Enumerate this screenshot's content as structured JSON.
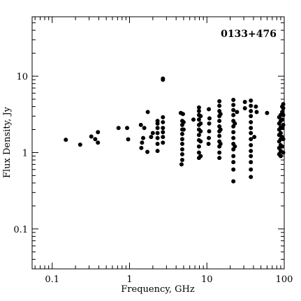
{
  "chart_data": {
    "type": "scatter",
    "title": "0133+476",
    "xlabel": "Frequency, GHz",
    "ylabel": "Flux Density, Jy",
    "xscale": "log",
    "yscale": "log",
    "xlim": [
      0.055,
      100
    ],
    "ylim": [
      0.03,
      60
    ],
    "x_ticks": [
      0.1,
      1,
      10,
      100
    ],
    "x_tick_labels": [
      "0.1",
      "1",
      "10",
      "100"
    ],
    "y_ticks": [
      0.1,
      1,
      10
    ],
    "y_tick_labels": [
      "0.1",
      "1",
      "10"
    ],
    "grid": false,
    "legend": "none",
    "marker_color": "#000000",
    "points": [
      [
        0.15,
        1.47
      ],
      [
        0.23,
        1.27
      ],
      [
        0.32,
        1.62
      ],
      [
        0.36,
        1.5
      ],
      [
        0.39,
        1.35
      ],
      [
        0.39,
        1.85
      ],
      [
        0.72,
        2.1
      ],
      [
        0.93,
        2.1
      ],
      [
        0.96,
        1.49
      ],
      [
        1.4,
        2.3
      ],
      [
        1.42,
        1.15
      ],
      [
        1.45,
        1.35
      ],
      [
        1.5,
        1.55
      ],
      [
        1.55,
        2.1
      ],
      [
        1.7,
        1.02
      ],
      [
        1.72,
        3.4
      ],
      [
        1.9,
        1.6
      ],
      [
        2.0,
        1.8
      ],
      [
        2.3,
        1.05
      ],
      [
        2.3,
        1.3
      ],
      [
        2.3,
        1.55
      ],
      [
        2.3,
        1.8
      ],
      [
        2.3,
        2.1
      ],
      [
        2.3,
        2.4
      ],
      [
        2.3,
        2.6
      ],
      [
        2.7,
        1.35
      ],
      [
        2.7,
        1.6
      ],
      [
        2.7,
        1.85
      ],
      [
        2.7,
        2.1
      ],
      [
        2.7,
        2.5
      ],
      [
        2.7,
        2.9
      ],
      [
        2.7,
        9.0
      ],
      [
        2.7,
        9.3
      ],
      [
        4.6,
        3.3
      ],
      [
        4.7,
        0.7
      ],
      [
        4.8,
        0.8
      ],
      [
        4.8,
        0.95
      ],
      [
        4.8,
        1.1
      ],
      [
        4.8,
        1.3
      ],
      [
        4.8,
        1.5
      ],
      [
        4.8,
        1.75
      ],
      [
        4.8,
        2.0
      ],
      [
        4.8,
        2.3
      ],
      [
        4.8,
        2.6
      ],
      [
        4.9,
        3.2
      ],
      [
        5.0,
        2.0
      ],
      [
        5.0,
        2.5
      ],
      [
        6.7,
        2.7
      ],
      [
        7.9,
        0.85
      ],
      [
        7.9,
        1.0
      ],
      [
        7.9,
        1.2
      ],
      [
        7.9,
        1.45
      ],
      [
        7.9,
        1.7
      ],
      [
        7.9,
        2.0
      ],
      [
        7.9,
        2.3
      ],
      [
        7.9,
        2.7
      ],
      [
        7.9,
        3.1
      ],
      [
        7.9,
        3.5
      ],
      [
        7.9,
        3.9
      ],
      [
        8.3,
        0.9
      ],
      [
        8.3,
        1.4
      ],
      [
        8.3,
        1.9
      ],
      [
        8.3,
        2.4
      ],
      [
        8.3,
        3.0
      ],
      [
        10.5,
        1.3
      ],
      [
        10.6,
        1.55
      ],
      [
        10.7,
        1.9
      ],
      [
        10.7,
        2.4
      ],
      [
        10.8,
        2.8
      ],
      [
        10.6,
        3.7
      ],
      [
        14.5,
        0.85
      ],
      [
        14.5,
        1.0
      ],
      [
        14.5,
        1.2
      ],
      [
        14.5,
        1.4
      ],
      [
        14.5,
        1.65
      ],
      [
        14.5,
        1.9
      ],
      [
        14.5,
        2.2
      ],
      [
        14.5,
        2.6
      ],
      [
        14.5,
        3.0
      ],
      [
        14.5,
        3.5
      ],
      [
        14.5,
        4.1
      ],
      [
        14.5,
        4.7
      ],
      [
        15.0,
        1.3
      ],
      [
        15.0,
        2.0
      ],
      [
        15.0,
        3.2
      ],
      [
        22.0,
        0.42
      ],
      [
        22.0,
        0.6
      ],
      [
        22.0,
        0.75
      ],
      [
        22.0,
        0.9
      ],
      [
        22.0,
        1.1
      ],
      [
        22.0,
        1.3
      ],
      [
        22.0,
        1.55
      ],
      [
        22.0,
        1.85
      ],
      [
        22.0,
        2.2
      ],
      [
        22.0,
        2.6
      ],
      [
        22.0,
        3.1
      ],
      [
        22.0,
        3.6
      ],
      [
        22.0,
        4.2
      ],
      [
        22.0,
        4.9
      ],
      [
        23.0,
        1.2
      ],
      [
        23.0,
        2.4
      ],
      [
        24.5,
        3.4
      ],
      [
        31.0,
        3.8
      ],
      [
        31.0,
        4.6
      ],
      [
        37.0,
        0.48
      ],
      [
        37.0,
        0.6
      ],
      [
        37.0,
        0.75
      ],
      [
        37.0,
        0.9
      ],
      [
        37.0,
        1.05
      ],
      [
        37.0,
        1.25
      ],
      [
        37.0,
        1.5
      ],
      [
        37.0,
        1.8
      ],
      [
        37.0,
        2.1
      ],
      [
        37.0,
        2.5
      ],
      [
        37.0,
        3.0
      ],
      [
        37.0,
        3.5
      ],
      [
        37.0,
        4.1
      ],
      [
        37.0,
        4.8
      ],
      [
        41.0,
        1.6
      ],
      [
        43.0,
        4.0
      ],
      [
        44.0,
        3.4
      ],
      [
        60.0,
        3.3
      ],
      [
        86.0,
        0.95
      ],
      [
        86.0,
        1.15
      ],
      [
        86.0,
        1.4
      ],
      [
        86.0,
        1.7
      ],
      [
        86.0,
        2.0
      ],
      [
        86.0,
        2.4
      ],
      [
        86.0,
        2.9
      ],
      [
        90.0,
        0.9
      ],
      [
        90.0,
        1.05
      ],
      [
        90.0,
        1.25
      ],
      [
        90.0,
        1.5
      ],
      [
        90.0,
        1.8
      ],
      [
        90.0,
        2.15
      ],
      [
        90.0,
        2.6
      ],
      [
        90.0,
        3.1
      ],
      [
        94.0,
        1.2
      ],
      [
        94.0,
        1.6
      ],
      [
        94.0,
        2.1
      ],
      [
        94.0,
        2.7
      ],
      [
        94.0,
        3.4
      ],
      [
        94.0,
        4.0
      ],
      [
        97.0,
        1.0
      ],
      [
        97.0,
        1.5
      ],
      [
        97.0,
        2.3
      ],
      [
        97.0,
        3.1
      ],
      [
        97.0,
        3.8
      ],
      [
        97.0,
        4.3
      ]
    ]
  }
}
